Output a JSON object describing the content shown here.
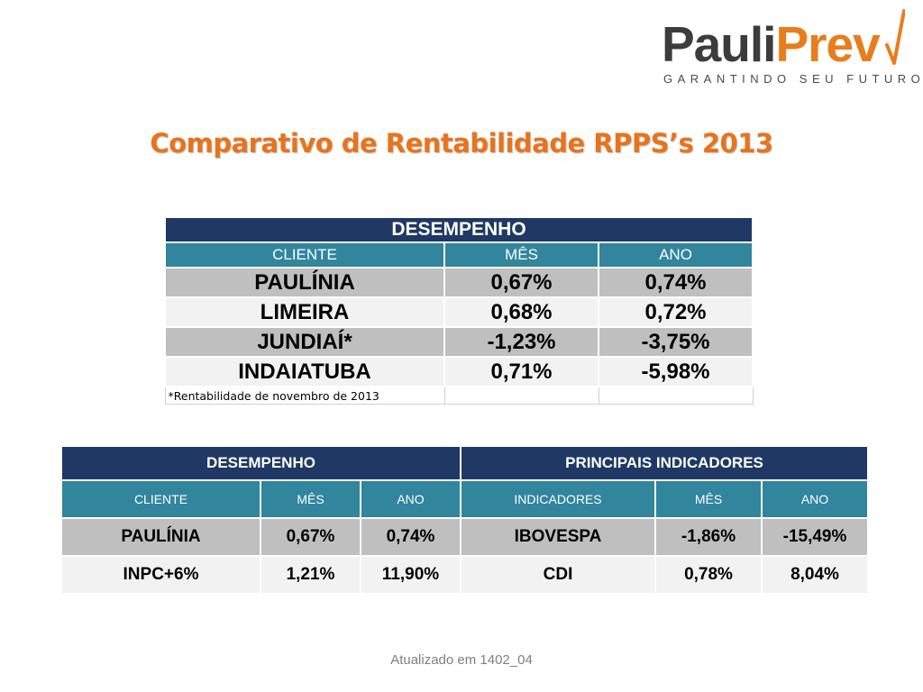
{
  "logo": {
    "word_part1": "Pauli",
    "word_part2": "Prev",
    "tagline": "GARANTINDO SEU FUTURO"
  },
  "title": "Comparativo de Rentabilidade RPPS’s 2013",
  "table1": {
    "header": "DESEMPENHO",
    "columns": [
      "CLIENTE",
      "MÊS",
      "ANO"
    ],
    "rows": [
      [
        "PAULÍNIA",
        "0,67%",
        "0,74%"
      ],
      [
        "LIMEIRA",
        "0,68%",
        "0,72%"
      ],
      [
        "JUNDIAÍ*",
        "-1,23%",
        "-3,75%"
      ],
      [
        "INDAIATUBA",
        "0,71%",
        "-5,98%"
      ]
    ],
    "note": "*Rentabilidade de novembro de 2013"
  },
  "table2": {
    "header_left": "DESEMPENHO",
    "header_right": "PRINCIPAIS INDICADORES",
    "columns": [
      "CLIENTE",
      "MÊS",
      "ANO",
      "INDICADORES",
      "MÊS",
      "ANO"
    ],
    "rows": [
      [
        "PAULÍNIA",
        "0,67%",
        "0,74%",
        "IBOVESPA",
        "-1,86%",
        "-15,49%"
      ],
      [
        "INPC+6%",
        "1,21%",
        "11,90%",
        "CDI",
        "0,78%",
        "8,04%"
      ]
    ]
  },
  "footer": "Atualizado em 1402_04",
  "colors": {
    "accent": "#e9731c",
    "header_dark": "#1f3864",
    "header_teal": "#31859c",
    "row_dark": "#bfbfbf",
    "row_light": "#f2f2f2"
  }
}
